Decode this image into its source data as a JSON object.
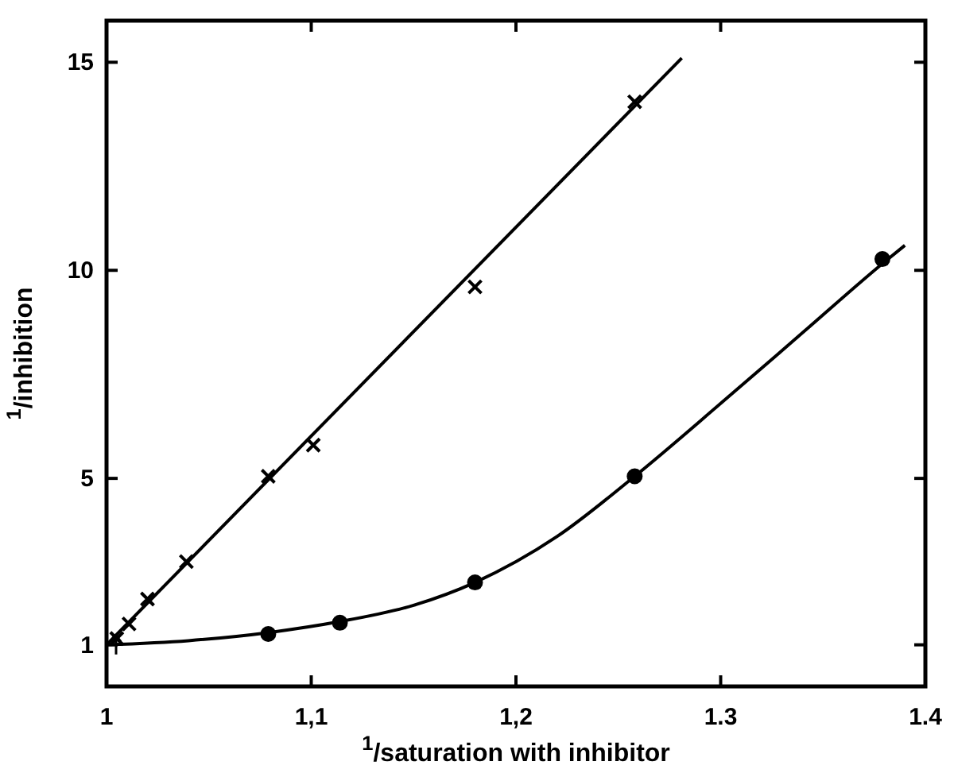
{
  "chart_data": {
    "type": "scatter",
    "xlabel": "$^{1}$/saturation with inhibitor",
    "ylabel": "$^{1}$/inhibition",
    "xlim": [
      1,
      1.4
    ],
    "ylim": [
      0,
      16
    ],
    "xticks": [
      1,
      {
        "value": 1.1,
        "label": "1,1"
      },
      {
        "value": 1.2,
        "label": "1,2"
      },
      1.3,
      1.4
    ],
    "yticks": [
      1,
      5,
      10,
      15
    ],
    "grid": false,
    "series": [
      {
        "marker": "cross",
        "color": "#000000",
        "x": [
          1.005,
          1.011,
          1.02,
          1.039,
          1.079,
          1.101,
          1.18,
          1.258
        ],
        "values": [
          1.15,
          1.5,
          2.1,
          3.0,
          5.05,
          5.8,
          9.6,
          14.05
        ]
      },
      {
        "marker": "circle",
        "color": "#000000",
        "x": [
          1.079,
          1.114,
          1.18,
          1.258,
          1.379
        ],
        "values": [
          1.26,
          1.53,
          2.5,
          5.05,
          10.27
        ]
      },
      {
        "type": "line",
        "marker": "none",
        "line_style": "solid",
        "color": "#000000",
        "x": [
          1,
          1.281
        ],
        "values": [
          1,
          15.1
        ]
      },
      {
        "type": "line",
        "marker": "none",
        "line_style": "solid",
        "color": "#000000",
        "x": [
          1,
          1.04,
          1.08,
          1.113,
          1.15,
          1.18,
          1.22,
          1.258,
          1.3,
          1.34,
          1.38,
          1.39
        ],
        "values": [
          1.0,
          1.1,
          1.3,
          1.55,
          1.95,
          2.5,
          3.6,
          5.05,
          6.8,
          8.5,
          10.2,
          10.6
        ]
      }
    ]
  }
}
